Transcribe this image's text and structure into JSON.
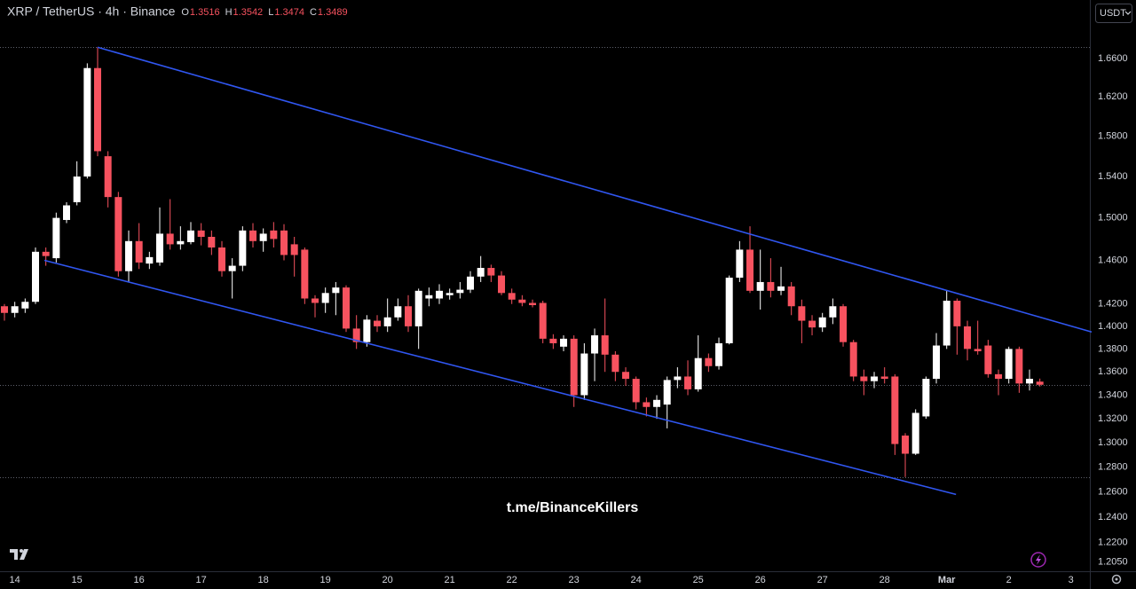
{
  "chart_data": {
    "type": "candlestick",
    "title": "XRP / TetherUS · 4h · Binance",
    "ohlc_labels": [
      "O",
      "H",
      "L",
      "C"
    ],
    "currency": "USDT",
    "watermark": "t.me/BinanceKillers",
    "up_color": "#ffffff",
    "down_color": "#f7525f",
    "log_scale": true,
    "ylim": [
      1.198,
      1.723
    ],
    "yticks": [
      {
        "value": 1.66,
        "label": "1.6600"
      },
      {
        "value": 1.62,
        "label": "1.6200"
      },
      {
        "value": 1.58,
        "label": "1.5800"
      },
      {
        "value": 1.54,
        "label": "1.5400"
      },
      {
        "value": 1.5,
        "label": "1.5000"
      },
      {
        "value": 1.46,
        "label": "1.4600"
      },
      {
        "value": 1.42,
        "label": "1.4200"
      },
      {
        "value": 1.4,
        "label": "1.4000"
      },
      {
        "value": 1.38,
        "label": "1.3800"
      },
      {
        "value": 1.36,
        "label": "1.3600"
      },
      {
        "value": 1.34,
        "label": "1.3400"
      },
      {
        "value": 1.32,
        "label": "1.3200"
      },
      {
        "value": 1.3,
        "label": "1.3000"
      },
      {
        "value": 1.28,
        "label": "1.2800"
      },
      {
        "value": 1.26,
        "label": "1.2600"
      },
      {
        "value": 1.24,
        "label": "1.2400"
      },
      {
        "value": 1.22,
        "label": "1.2200"
      },
      {
        "value": 1.205,
        "label": "1.2050"
      }
    ],
    "categories": [
      null,
      "14",
      null,
      null,
      null,
      null,
      null,
      "15",
      null,
      null,
      null,
      null,
      null,
      "16",
      null,
      null,
      null,
      null,
      null,
      "17",
      null,
      null,
      null,
      null,
      null,
      "18",
      null,
      null,
      null,
      null,
      null,
      "19",
      null,
      null,
      null,
      null,
      null,
      "20",
      null,
      null,
      null,
      null,
      null,
      "21",
      null,
      null,
      null,
      null,
      null,
      "22",
      null,
      null,
      null,
      null,
      null,
      "23",
      null,
      null,
      null,
      null,
      null,
      "24",
      null,
      null,
      null,
      null,
      null,
      "25",
      null,
      null,
      null,
      null,
      null,
      "26",
      null,
      null,
      null,
      null,
      null,
      "27",
      null,
      null,
      null,
      null,
      null,
      "28",
      null,
      null,
      null,
      null,
      null,
      "Mar",
      null,
      null,
      null,
      null,
      null,
      "2",
      null,
      null,
      null,
      null,
      null,
      "3"
    ],
    "open": [
      1.418,
      1.412,
      1.416,
      1.422,
      1.468,
      1.462,
      1.498,
      1.515,
      1.54,
      1.65,
      1.56,
      1.52,
      1.45,
      1.478,
      1.457,
      1.458,
      1.485,
      1.475,
      1.477,
      1.488,
      1.482,
      1.472,
      1.45,
      1.455,
      1.488,
      1.478,
      1.488,
      1.488,
      1.475,
      1.47,
      1.425,
      1.421,
      1.43,
      1.435,
      1.398,
      1.386,
      1.405,
      1.4,
      1.408,
      1.418,
      1.4,
      1.425,
      1.425,
      1.428,
      1.43,
      1.433,
      1.445,
      1.453,
      1.446,
      1.43,
      1.424,
      1.421,
      1.421,
      1.389,
      1.382,
      1.389,
      1.34,
      1.376,
      1.392,
      1.375,
      1.36,
      1.354,
      1.334,
      1.33,
      1.332,
      1.353,
      1.356,
      1.345,
      1.372,
      1.365,
      1.385,
      1.444,
      1.47,
      1.432,
      1.44,
      1.432,
      1.436,
      1.418,
      1.405,
      1.399,
      1.408,
      1.418,
      1.386,
      1.356,
      1.352,
      1.356,
      1.356,
      1.306,
      1.291,
      1.322,
      1.354,
      1.383,
      1.423,
      1.4,
      1.38,
      1.383,
      1.358,
      1.354,
      1.38,
      1.35,
      1.3516,
      null,
      null,
      null
    ],
    "high": [
      1.42,
      1.422,
      1.425,
      1.472,
      1.472,
      1.505,
      1.515,
      1.555,
      1.655,
      1.672,
      1.565,
      1.525,
      1.488,
      1.495,
      1.468,
      1.51,
      1.518,
      1.492,
      1.496,
      1.495,
      1.488,
      1.478,
      1.462,
      1.492,
      1.495,
      1.49,
      1.496,
      1.494,
      1.482,
      1.472,
      1.428,
      1.435,
      1.44,
      1.437,
      1.41,
      1.41,
      1.41,
      1.425,
      1.425,
      1.428,
      1.434,
      1.435,
      1.438,
      1.434,
      1.44,
      1.45,
      1.464,
      1.456,
      1.45,
      1.434,
      1.428,
      1.424,
      1.423,
      1.393,
      1.392,
      1.392,
      1.385,
      1.398,
      1.425,
      1.378,
      1.364,
      1.356,
      1.338,
      1.34,
      1.356,
      1.364,
      1.37,
      1.392,
      1.376,
      1.39,
      1.446,
      1.478,
      1.492,
      1.47,
      1.462,
      1.454,
      1.44,
      1.424,
      1.41,
      1.412,
      1.425,
      1.42,
      1.388,
      1.362,
      1.36,
      1.364,
      1.358,
      1.308,
      1.328,
      1.356,
      1.394,
      1.432,
      1.425,
      1.405,
      1.405,
      1.388,
      1.362,
      1.382,
      1.382,
      1.362,
      1.3542,
      null,
      null,
      null
    ],
    "low": [
      1.405,
      1.408,
      1.412,
      1.42,
      1.455,
      1.458,
      1.495,
      1.512,
      1.538,
      1.56,
      1.51,
      1.445,
      1.44,
      1.452,
      1.452,
      1.455,
      1.47,
      1.47,
      1.475,
      1.474,
      1.465,
      1.445,
      1.425,
      1.45,
      1.472,
      1.468,
      1.472,
      1.46,
      1.445,
      1.42,
      1.408,
      1.412,
      1.41,
      1.395,
      1.38,
      1.382,
      1.395,
      1.395,
      1.405,
      1.395,
      1.38,
      1.418,
      1.42,
      1.424,
      1.425,
      1.43,
      1.44,
      1.44,
      1.428,
      1.42,
      1.418,
      1.417,
      1.385,
      1.38,
      1.378,
      1.33,
      1.336,
      1.352,
      1.36,
      1.352,
      1.348,
      1.328,
      1.322,
      1.32,
      1.312,
      1.346,
      1.34,
      1.343,
      1.36,
      1.362,
      1.384,
      1.44,
      1.43,
      1.415,
      1.426,
      1.428,
      1.41,
      1.385,
      1.392,
      1.395,
      1.402,
      1.382,
      1.352,
      1.34,
      1.346,
      1.35,
      1.29,
      1.272,
      1.29,
      1.32,
      1.35,
      1.38,
      1.375,
      1.37,
      1.375,
      1.355,
      1.34,
      1.35,
      1.342,
      1.344,
      1.3474,
      null,
      null,
      null
    ],
    "close": [
      1.412,
      1.418,
      1.422,
      1.468,
      1.464,
      1.5,
      1.512,
      1.54,
      1.65,
      1.565,
      1.52,
      1.45,
      1.478,
      1.458,
      1.463,
      1.485,
      1.475,
      1.478,
      1.488,
      1.482,
      1.472,
      1.45,
      1.455,
      1.488,
      1.478,
      1.485,
      1.48,
      1.465,
      1.465,
      1.425,
      1.421,
      1.43,
      1.435,
      1.398,
      1.386,
      1.406,
      1.4,
      1.408,
      1.418,
      1.4,
      1.432,
      1.428,
      1.432,
      1.43,
      1.433,
      1.445,
      1.453,
      1.446,
      1.43,
      1.424,
      1.421,
      1.419,
      1.389,
      1.385,
      1.389,
      1.34,
      1.376,
      1.392,
      1.375,
      1.36,
      1.354,
      1.334,
      1.33,
      1.336,
      1.353,
      1.356,
      1.345,
      1.372,
      1.365,
      1.385,
      1.444,
      1.47,
      1.432,
      1.44,
      1.432,
      1.436,
      1.418,
      1.405,
      1.399,
      1.408,
      1.418,
      1.386,
      1.356,
      1.352,
      1.356,
      1.354,
      1.299,
      1.291,
      1.325,
      1.354,
      1.383,
      1.423,
      1.4,
      1.38,
      1.378,
      1.358,
      1.354,
      1.38,
      1.35,
      1.354,
      1.3489,
      null,
      null,
      null
    ],
    "trendlines": [
      {
        "color": "#3056f0",
        "points": [
          [
            9,
            1.672
          ],
          [
            105,
            1.395
          ]
        ]
      },
      {
        "color": "#3056f0",
        "points": [
          [
            3.86,
            1.46
          ],
          [
            91.9,
            1.258
          ]
        ]
      }
    ]
  }
}
